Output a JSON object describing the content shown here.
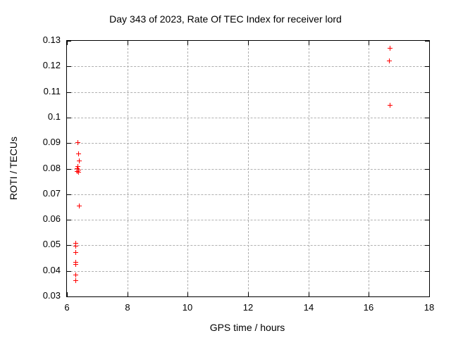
{
  "chart_data": {
    "type": "scatter",
    "title": "Day 343 of 2023, Rate Of TEC Index for receiver lord",
    "xlabel": "GPS time / hours",
    "ylabel": "ROTI / TECUs",
    "xlim": [
      6,
      18
    ],
    "ylim": [
      0.03,
      0.13
    ],
    "xticks": {
      "values": [
        6,
        8,
        10,
        12,
        14,
        16,
        18
      ],
      "labels": [
        "6",
        "8",
        "10",
        "12",
        "14",
        "16",
        "18"
      ]
    },
    "yticks": {
      "values": [
        0.03,
        0.04,
        0.05,
        0.06,
        0.07,
        0.08,
        0.09,
        0.1,
        0.11,
        0.12,
        0.13
      ],
      "labels": [
        "0.03",
        "0.04",
        "0.05",
        "0.06",
        "0.07",
        "0.08",
        "0.09",
        "0.1",
        "0.11",
        "0.12",
        "0.13"
      ]
    },
    "grid": true,
    "legend": "none",
    "marker": {
      "shape": "plus",
      "size": 7
    },
    "colors": {
      "marker": "#ff0000",
      "grid": "#b0b0b0",
      "border": "#000000",
      "background": "#ffffff"
    },
    "series": [
      {
        "name": "roti",
        "points": [
          [
            6.36,
            0.0903
          ],
          [
            6.37,
            0.086
          ],
          [
            6.39,
            0.0832
          ],
          [
            6.35,
            0.081
          ],
          [
            6.33,
            0.0802
          ],
          [
            6.37,
            0.0797
          ],
          [
            6.33,
            0.0791
          ],
          [
            6.38,
            0.0788
          ],
          [
            6.4,
            0.0654
          ],
          [
            6.28,
            0.0508
          ],
          [
            6.28,
            0.0497
          ],
          [
            6.28,
            0.0474
          ],
          [
            6.27,
            0.0434
          ],
          [
            6.28,
            0.0426
          ],
          [
            6.28,
            0.0385
          ],
          [
            6.28,
            0.0364
          ],
          [
            16.7,
            0.1273
          ],
          [
            16.67,
            0.1222
          ],
          [
            16.7,
            0.105
          ]
        ]
      }
    ]
  }
}
